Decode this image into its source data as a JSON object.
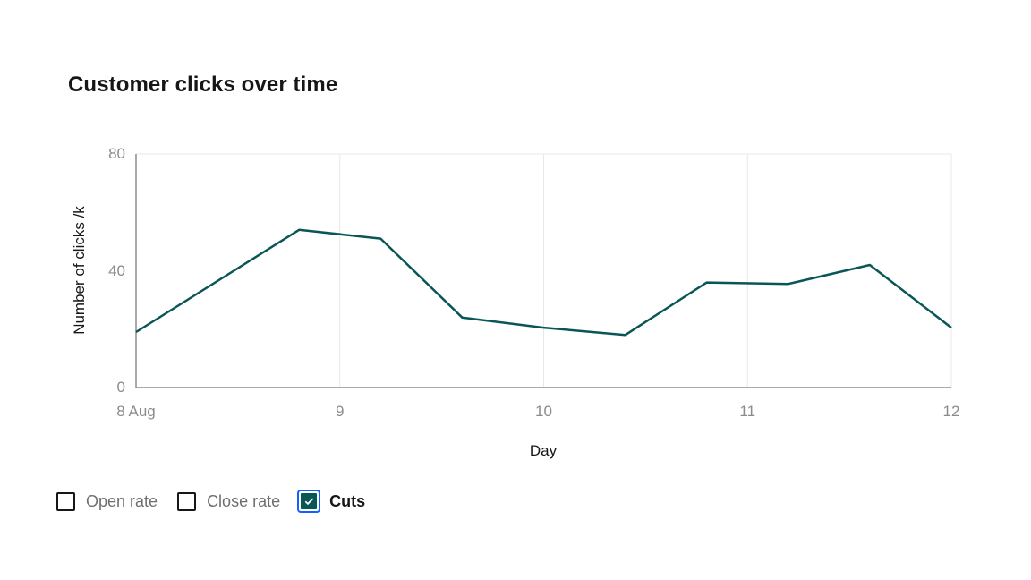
{
  "title": "Customer clicks over time",
  "chart_data": {
    "type": "line",
    "title": "Customer clicks over time",
    "xlabel": "Day",
    "ylabel": "Number of clicks /k",
    "xlim": [
      8,
      12
    ],
    "ylim": [
      0,
      80
    ],
    "x_ticks": [
      "8 Aug",
      "9",
      "10",
      "11",
      "12"
    ],
    "x_tick_days": [
      8,
      9,
      10,
      11,
      12
    ],
    "y_ticks": [
      "0",
      "40",
      "80"
    ],
    "y_tick_values": [
      0,
      40,
      80
    ],
    "grid": "vertical gridlines at day ticks plus top horizontal gridline, no horizontal midlines",
    "legend_position": "bottom-left",
    "series": [
      {
        "name": "Cuts",
        "color": "#0a5657",
        "x": [
          8.0,
          8.8,
          9.2,
          9.6,
          10.0,
          10.4,
          10.8,
          11.2,
          11.6,
          12.0
        ],
        "values": [
          19,
          54,
          51,
          24,
          20.5,
          18,
          36,
          35.5,
          42,
          20.5
        ]
      }
    ]
  },
  "legend": {
    "items": [
      {
        "label": "Open rate",
        "checked": false
      },
      {
        "label": "Close rate",
        "checked": false
      },
      {
        "label": "Cuts",
        "checked": true
      }
    ]
  },
  "colors": {
    "series_teal": "#0a5657",
    "accent_blue": "#0f62fe",
    "text_primary": "#161616",
    "text_secondary": "#6f6f6f",
    "tick_gray": "#8b8b8b",
    "axis_gray": "#8d8d8d",
    "gridline_gray": "#e8e8e8",
    "background": "#ffffff"
  }
}
